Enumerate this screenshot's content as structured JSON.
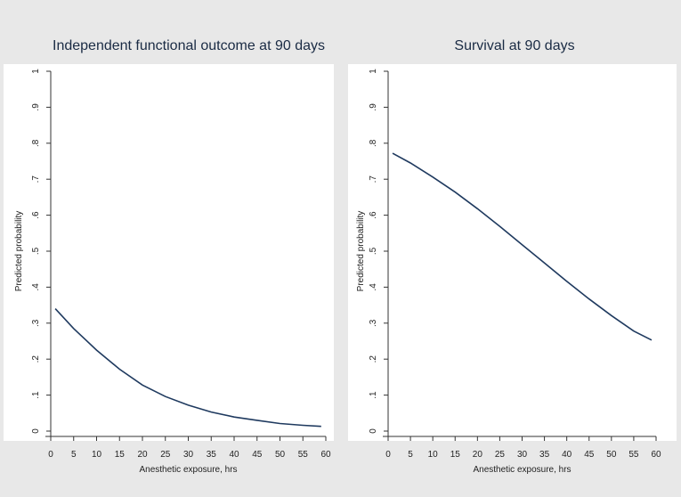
{
  "chart_data": [
    {
      "type": "line",
      "title": "Independent functional outcome at 90 days",
      "xlabel": "Anesthetic exposure, hrs",
      "ylabel": "Predicted probability",
      "xlim": [
        0,
        60
      ],
      "ylim": [
        0,
        1
      ],
      "x_ticks": [
        0,
        5,
        10,
        15,
        20,
        25,
        30,
        35,
        40,
        45,
        50,
        55,
        60
      ],
      "y_ticks": [
        0,
        0.1,
        0.2,
        0.3,
        0.4,
        0.5,
        0.6,
        0.7,
        0.8,
        0.9,
        1
      ],
      "y_tick_labels": [
        "0",
        ".1",
        ".2",
        ".3",
        ".4",
        ".5",
        ".6",
        ".7",
        ".8",
        ".9",
        "1"
      ],
      "grid": false,
      "series": [
        {
          "name": "Predicted probability",
          "color": "#1f3a5f",
          "x": [
            1,
            5,
            10,
            15,
            20,
            25,
            30,
            35,
            40,
            45,
            50,
            55,
            59
          ],
          "y": [
            0.34,
            0.285,
            0.225,
            0.172,
            0.128,
            0.096,
            0.072,
            0.053,
            0.039,
            0.03,
            0.021,
            0.016,
            0.013
          ]
        }
      ]
    },
    {
      "type": "line",
      "title": "Survival at 90 days",
      "xlabel": "Anesthetic exposure, hrs",
      "ylabel": "Predicted probability",
      "xlim": [
        0,
        60
      ],
      "ylim": [
        0,
        1
      ],
      "x_ticks": [
        0,
        5,
        10,
        15,
        20,
        25,
        30,
        35,
        40,
        45,
        50,
        55,
        60
      ],
      "y_ticks": [
        0,
        0.1,
        0.2,
        0.3,
        0.4,
        0.5,
        0.6,
        0.7,
        0.8,
        0.9,
        1
      ],
      "y_tick_labels": [
        "0",
        ".1",
        ".2",
        ".3",
        ".4",
        ".5",
        ".6",
        ".7",
        ".8",
        ".9",
        "1"
      ],
      "grid": false,
      "series": [
        {
          "name": "Predicted probability",
          "color": "#1f3a5f",
          "x": [
            1,
            5,
            10,
            15,
            20,
            25,
            30,
            35,
            40,
            45,
            50,
            55,
            59
          ],
          "y": [
            0.772,
            0.745,
            0.706,
            0.664,
            0.618,
            0.569,
            0.518,
            0.467,
            0.416,
            0.367,
            0.321,
            0.278,
            0.253
          ]
        }
      ]
    }
  ]
}
